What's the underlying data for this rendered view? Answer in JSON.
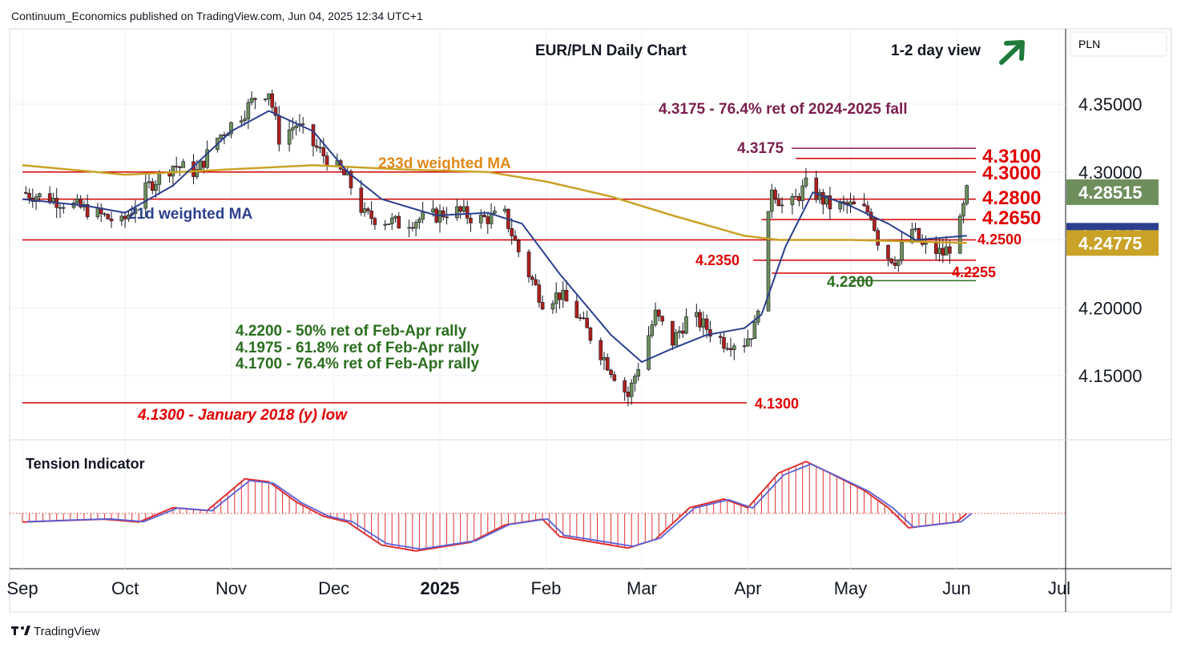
{
  "header": {
    "published": "Continuum_Economics published on TradingView.com, Jun 04, 2025 12:34 UTC+1",
    "title": "EUR/PLN Daily Chart",
    "view_label": "1-2 day view",
    "currency": "PLN"
  },
  "footer": {
    "brand": "TradingView"
  },
  "colors": {
    "up_candle": "#6e8f5c",
    "down_candle": "#b0201c",
    "ma21": "#2c3f8e",
    "ma233": "#c9a227",
    "level_line": "#d00000",
    "support_line": "#2a6e1e",
    "purple": "#7a1f4e",
    "tension_red": "#e03030"
  },
  "chart_data": [
    {
      "type": "candlestick",
      "title": "EUR/PLN Daily Chart",
      "ylim": [
        4.105,
        4.405
      ],
      "y_ticks": [
        "4.35000",
        "4.30000",
        "4.25000",
        "4.20000",
        "4.15000"
      ],
      "x_ticks": [
        "Sep",
        "Oct",
        "Nov",
        "Dec",
        "2025",
        "Feb",
        "Mar",
        "Apr",
        "May",
        "Jun",
        "Jul"
      ],
      "x_tick_dates": [
        "2024-09-01",
        "2024-10-01",
        "2024-11-01",
        "2024-12-01",
        "2025-01-01",
        "2025-02-01",
        "2025-03-01",
        "2025-04-01",
        "2025-05-01",
        "2025-06-01",
        "2025-07-01"
      ],
      "close_path": [
        [
          "2024-09-01",
          4.285
        ],
        [
          "2024-09-10",
          4.28
        ],
        [
          "2024-09-20",
          4.272
        ],
        [
          "2024-09-30",
          4.262
        ],
        [
          "2024-10-08",
          4.29
        ],
        [
          "2024-10-15",
          4.305
        ],
        [
          "2024-10-22",
          4.3
        ],
        [
          "2024-10-28",
          4.325
        ],
        [
          "2024-11-05",
          4.345
        ],
        [
          "2024-11-08",
          4.355
        ],
        [
          "2024-11-12",
          4.36
        ],
        [
          "2024-11-15",
          4.325
        ],
        [
          "2024-11-20",
          4.335
        ],
        [
          "2024-11-25",
          4.32
        ],
        [
          "2024-12-01",
          4.305
        ],
        [
          "2024-12-05",
          4.295
        ],
        [
          "2024-12-10",
          4.268
        ],
        [
          "2024-12-20",
          4.262
        ],
        [
          "2024-12-31",
          4.268
        ],
        [
          "2025-01-05",
          4.272
        ],
        [
          "2025-01-12",
          4.265
        ],
        [
          "2025-01-20",
          4.268
        ],
        [
          "2025-01-25",
          4.235
        ],
        [
          "2025-01-31",
          4.205
        ],
        [
          "2025-02-05",
          4.21
        ],
        [
          "2025-02-10",
          4.195
        ],
        [
          "2025-02-15",
          4.175
        ],
        [
          "2025-02-20",
          4.155
        ],
        [
          "2025-02-25",
          4.135
        ],
        [
          "2025-03-01",
          4.165
        ],
        [
          "2025-03-05",
          4.195
        ],
        [
          "2025-03-10",
          4.175
        ],
        [
          "2025-03-15",
          4.195
        ],
        [
          "2025-03-20",
          4.185
        ],
        [
          "2025-03-25",
          4.175
        ],
        [
          "2025-03-31",
          4.175
        ],
        [
          "2025-04-03",
          4.185
        ],
        [
          "2025-04-06",
          4.24
        ],
        [
          "2025-04-08",
          4.29
        ],
        [
          "2025-04-12",
          4.27
        ],
        [
          "2025-04-18",
          4.29
        ],
        [
          "2025-04-25",
          4.275
        ],
        [
          "2025-05-01",
          4.275
        ],
        [
          "2025-05-07",
          4.27
        ],
        [
          "2025-05-10",
          4.24
        ],
        [
          "2025-05-15",
          4.235
        ],
        [
          "2025-05-18",
          4.262
        ],
        [
          "2025-05-22",
          4.245
        ],
        [
          "2025-05-28",
          4.24
        ],
        [
          "2025-06-01",
          4.25
        ],
        [
          "2025-06-04",
          4.285
        ]
      ],
      "ma21_path": [
        [
          "2024-09-01",
          4.28
        ],
        [
          "2024-09-20",
          4.275
        ],
        [
          "2024-10-01",
          4.27
        ],
        [
          "2024-10-15",
          4.29
        ],
        [
          "2024-11-01",
          4.33
        ],
        [
          "2024-11-12",
          4.345
        ],
        [
          "2024-11-25",
          4.33
        ],
        [
          "2024-12-05",
          4.3
        ],
        [
          "2024-12-15",
          4.28
        ],
        [
          "2024-12-31",
          4.268
        ],
        [
          "2025-01-15",
          4.27
        ],
        [
          "2025-01-25",
          4.262
        ],
        [
          "2025-02-05",
          4.225
        ],
        [
          "2025-02-20",
          4.18
        ],
        [
          "2025-03-01",
          4.16
        ],
        [
          "2025-03-10",
          4.17
        ],
        [
          "2025-03-20",
          4.18
        ],
        [
          "2025-03-31",
          4.185
        ],
        [
          "2025-04-05",
          4.195
        ],
        [
          "2025-04-12",
          4.245
        ],
        [
          "2025-04-20",
          4.285
        ],
        [
          "2025-05-01",
          4.275
        ],
        [
          "2025-05-12",
          4.262
        ],
        [
          "2025-05-20",
          4.25
        ],
        [
          "2025-06-04",
          4.25305
        ]
      ],
      "ma233_path": [
        [
          "2024-09-01",
          4.305
        ],
        [
          "2024-10-01",
          4.298
        ],
        [
          "2024-11-01",
          4.302
        ],
        [
          "2024-11-25",
          4.305
        ],
        [
          "2024-12-20",
          4.302
        ],
        [
          "2025-01-15",
          4.3
        ],
        [
          "2025-02-01",
          4.293
        ],
        [
          "2025-02-20",
          4.282
        ],
        [
          "2025-03-10",
          4.268
        ],
        [
          "2025-03-31",
          4.253
        ],
        [
          "2025-04-10",
          4.25
        ],
        [
          "2025-05-01",
          4.25
        ],
        [
          "2025-06-04",
          4.24775
        ]
      ],
      "levels": [
        {
          "value": 4.3175,
          "label": "4.3175",
          "style": "purple",
          "from": "2025-04-15"
        },
        {
          "value": 4.31,
          "label": "4.3100",
          "style": "red",
          "from": "2025-04-15"
        },
        {
          "value": 4.3,
          "label": "4.3000",
          "style": "red",
          "from": "2024-09-01"
        },
        {
          "value": 4.28,
          "label": "4.2800",
          "style": "red",
          "from": "2024-09-01"
        },
        {
          "value": 4.265,
          "label": "4.2650",
          "style": "red",
          "from": "2025-04-05"
        },
        {
          "value": 4.25,
          "label": "4.2500",
          "style": "red",
          "from": "2024-09-01"
        },
        {
          "value": 4.235,
          "label": "4.2350",
          "style": "red",
          "from": "2025-04-05"
        },
        {
          "value": 4.2255,
          "label": "4.2255",
          "style": "red",
          "from": "2025-04-08"
        },
        {
          "value": 4.22,
          "label": "4.2200",
          "style": "green",
          "from": "2025-05-01"
        },
        {
          "value": 4.13,
          "label": "4.1300",
          "style": "red",
          "from": "2024-09-01"
        }
      ],
      "price_badges": [
        {
          "value": 4.28515,
          "label": "4.28515",
          "color": "#6e8f5c"
        },
        {
          "value": 4.25305,
          "label": "4.25305",
          "color": "#2c3f8e"
        },
        {
          "value": 4.24775,
          "label": "4.24775",
          "color": "#c9a227"
        }
      ],
      "annotations": [
        {
          "text": "4.3175 - 76.4% ret of 2024-2025 fall",
          "color": "purple"
        },
        {
          "text": "233d weighted MA",
          "color": "orange"
        },
        {
          "text": "21d weighted MA",
          "color": "blue"
        },
        {
          "text": "4.2200 - 50% ret of Feb-Apr rally",
          "color": "green"
        },
        {
          "text": "4.1975 - 61.8% ret of Feb-Apr rally",
          "color": "green"
        },
        {
          "text": "4.1700 - 76.4% ret of Feb-Apr rally",
          "color": "green"
        },
        {
          "text": "4.1300 - January 2018 (y) low",
          "color": "red"
        }
      ]
    },
    {
      "type": "area",
      "title": "Tension Indicator",
      "ylim": [
        -1,
        1
      ],
      "series": [
        {
          "values": [
            [
              "2024-09-01",
              -0.15
            ],
            [
              "2024-09-15",
              -0.12
            ],
            [
              "2024-09-25",
              -0.1
            ],
            [
              "2024-10-05",
              -0.15
            ],
            [
              "2024-10-15",
              0.1
            ],
            [
              "2024-10-25",
              0.05
            ],
            [
              "2024-11-05",
              0.6
            ],
            [
              "2024-11-12",
              0.55
            ],
            [
              "2024-11-20",
              0.2
            ],
            [
              "2024-11-28",
              -0.05
            ],
            [
              "2024-12-05",
              -0.15
            ],
            [
              "2024-12-15",
              -0.55
            ],
            [
              "2024-12-25",
              -0.65
            ],
            [
              "2025-01-10",
              -0.5
            ],
            [
              "2025-01-20",
              -0.2
            ],
            [
              "2025-01-31",
              -0.1
            ],
            [
              "2025-02-05",
              -0.4
            ],
            [
              "2025-02-15",
              -0.5
            ],
            [
              "2025-02-25",
              -0.6
            ],
            [
              "2025-03-05",
              -0.45
            ],
            [
              "2025-03-15",
              0.1
            ],
            [
              "2025-03-25",
              0.25
            ],
            [
              "2025-04-01",
              0.1
            ],
            [
              "2025-04-10",
              0.7
            ],
            [
              "2025-04-18",
              0.9
            ],
            [
              "2025-04-25",
              0.7
            ],
            [
              "2025-05-05",
              0.4
            ],
            [
              "2025-05-12",
              0.1
            ],
            [
              "2025-05-18",
              -0.25
            ],
            [
              "2025-05-25",
              -0.2
            ],
            [
              "2025-06-01",
              -0.15
            ],
            [
              "2025-06-04",
              0.0
            ]
          ]
        }
      ]
    }
  ]
}
